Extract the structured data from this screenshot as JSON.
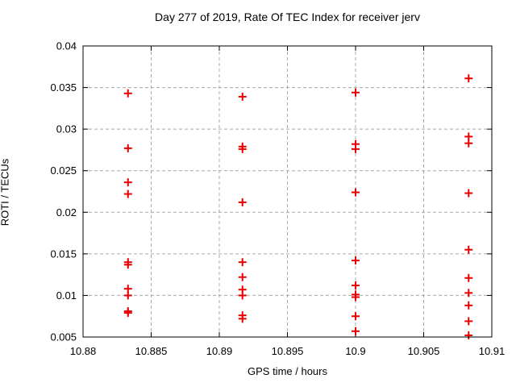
{
  "chart_data": {
    "type": "scatter",
    "title": "Day 277 of 2019, Rate Of TEC Index for receiver jerv",
    "xlabel": "GPS time / hours",
    "ylabel": "ROTI / TECUs",
    "xlim": [
      10.88,
      10.91
    ],
    "ylim": [
      0.005,
      0.04
    ],
    "xticks": [
      10.88,
      10.885,
      10.89,
      10.895,
      10.9,
      10.905,
      10.91
    ],
    "xtick_labels": [
      "10.88",
      "10.885",
      "10.89",
      "10.895",
      "10.9",
      "10.905",
      "10.91"
    ],
    "yticks": [
      0.005,
      0.01,
      0.015,
      0.02,
      0.025,
      0.03,
      0.035,
      0.04
    ],
    "ytick_labels": [
      "0.005",
      "0.01",
      "0.015",
      "0.02",
      "0.025",
      "0.03",
      "0.035",
      "0.04"
    ],
    "grid": true,
    "legend": "none",
    "marker": "plus",
    "marker_color": "#e60000",
    "grid_color": "#a8a8a8",
    "axis_color": "#000000",
    "points": [
      [
        10.8833,
        0.0343
      ],
      [
        10.8833,
        0.0277
      ],
      [
        10.8833,
        0.0236
      ],
      [
        10.8833,
        0.0222
      ],
      [
        10.8833,
        0.014
      ],
      [
        10.8833,
        0.0137
      ],
      [
        10.8833,
        0.0108
      ],
      [
        10.8833,
        0.01
      ],
      [
        10.8833,
        0.0081
      ],
      [
        10.8833,
        0.0079
      ],
      [
        10.8917,
        0.0339
      ],
      [
        10.8917,
        0.0279
      ],
      [
        10.8917,
        0.0276
      ],
      [
        10.8917,
        0.0212
      ],
      [
        10.8917,
        0.014
      ],
      [
        10.8917,
        0.0122
      ],
      [
        10.8917,
        0.0107
      ],
      [
        10.8917,
        0.01
      ],
      [
        10.8917,
        0.0076
      ],
      [
        10.8917,
        0.0072
      ],
      [
        10.9,
        0.0344
      ],
      [
        10.9,
        0.0282
      ],
      [
        10.9,
        0.0276
      ],
      [
        10.9,
        0.0224
      ],
      [
        10.9,
        0.0142
      ],
      [
        10.9,
        0.0112
      ],
      [
        10.9,
        0.0101
      ],
      [
        10.9,
        0.0098
      ],
      [
        10.9,
        0.0075
      ],
      [
        10.9,
        0.0057
      ],
      [
        10.9083,
        0.0361
      ],
      [
        10.9083,
        0.0291
      ],
      [
        10.9083,
        0.0283
      ],
      [
        10.9083,
        0.0223
      ],
      [
        10.9083,
        0.0155
      ],
      [
        10.9083,
        0.0121
      ],
      [
        10.9083,
        0.0103
      ],
      [
        10.9083,
        0.0088
      ],
      [
        10.9083,
        0.0069
      ],
      [
        10.9083,
        0.0052
      ]
    ]
  }
}
